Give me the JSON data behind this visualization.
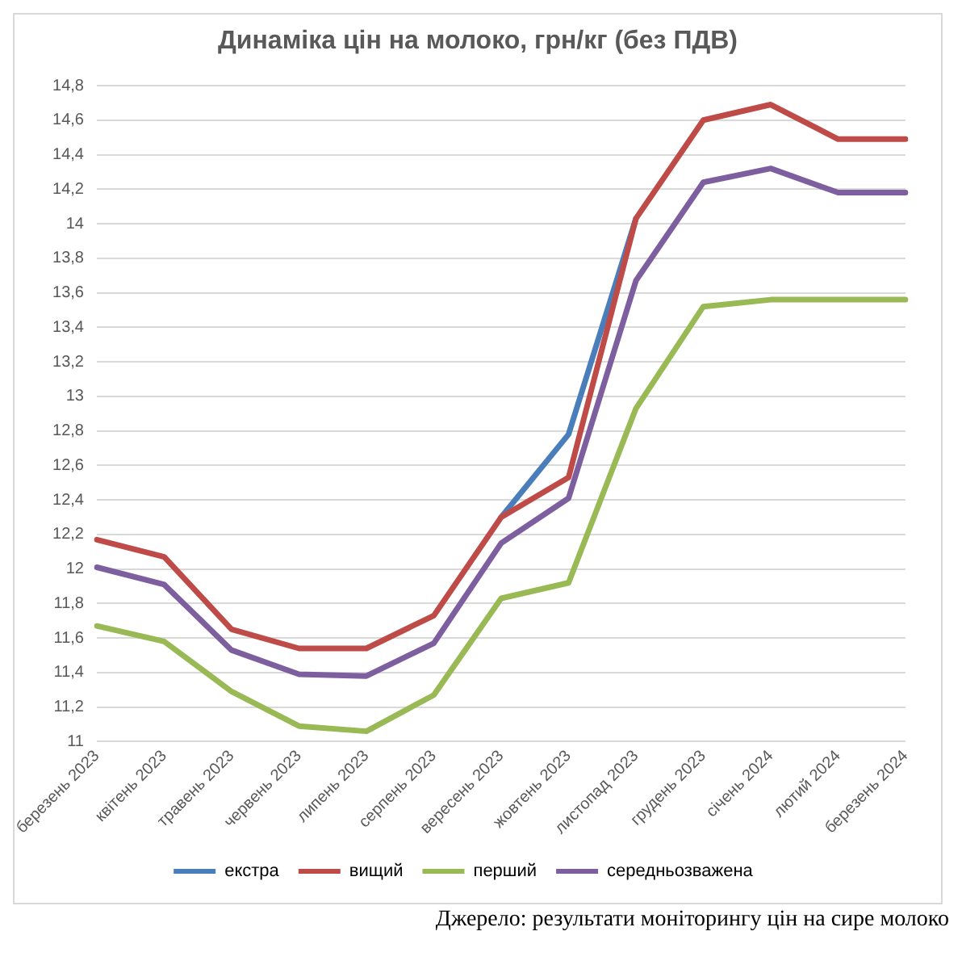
{
  "chart_data": {
    "type": "line",
    "title": "Динаміка цін на молоко, грн/кг (без ПДВ)",
    "categories": [
      "березень 2023",
      "квітень 2023",
      "травень 2023",
      "червень 2023",
      "липень 2023",
      "серпень 2023",
      "вересень 2023",
      "жовтень 2023",
      "листопад 2023",
      "грудень 2023",
      "січень 2024",
      "лютий 2024",
      "березень 2024"
    ],
    "series": [
      {
        "name": "екстра",
        "color": "#4a7ebb",
        "values": [
          null,
          null,
          null,
          null,
          null,
          null,
          12.3,
          12.78,
          14.03,
          null,
          null,
          null,
          null
        ]
      },
      {
        "name": "вищий",
        "color": "#be4b48",
        "values": [
          12.17,
          12.07,
          11.65,
          11.54,
          11.54,
          11.73,
          12.3,
          12.53,
          14.03,
          14.6,
          14.69,
          14.49,
          14.49
        ]
      },
      {
        "name": "перший",
        "color": "#98b954",
        "values": [
          11.67,
          11.58,
          11.29,
          11.09,
          11.06,
          11.27,
          11.83,
          11.92,
          12.93,
          13.52,
          13.56,
          13.56,
          13.56
        ]
      },
      {
        "name": "середньозважена",
        "color": "#7d5fa0",
        "values": [
          12.01,
          11.91,
          11.53,
          11.39,
          11.38,
          11.57,
          12.15,
          12.41,
          13.67,
          14.24,
          14.32,
          14.18,
          14.18
        ]
      }
    ],
    "ylim": [
      11,
      14.8
    ],
    "yticks": [
      {
        "value": 11,
        "label": "11"
      },
      {
        "value": 11.2,
        "label": "11,2"
      },
      {
        "value": 11.4,
        "label": "11,4"
      },
      {
        "value": 11.6,
        "label": "11,6"
      },
      {
        "value": 11.8,
        "label": "11,8"
      },
      {
        "value": 12,
        "label": "12"
      },
      {
        "value": 12.2,
        "label": "12,2"
      },
      {
        "value": 12.4,
        "label": "12,4"
      },
      {
        "value": 12.6,
        "label": "12,6"
      },
      {
        "value": 12.8,
        "label": "12,8"
      },
      {
        "value": 13,
        "label": "13"
      },
      {
        "value": 13.2,
        "label": "13,2"
      },
      {
        "value": 13.4,
        "label": "13,4"
      },
      {
        "value": 13.6,
        "label": "13,6"
      },
      {
        "value": 13.8,
        "label": "13,8"
      },
      {
        "value": 14,
        "label": "14"
      },
      {
        "value": 14.2,
        "label": "14,2"
      },
      {
        "value": 14.4,
        "label": "14,4"
      },
      {
        "value": 14.6,
        "label": "14,6"
      },
      {
        "value": 14.8,
        "label": "14,8"
      }
    ],
    "grid": "y",
    "legend": "bottom",
    "marker": "none",
    "line_style": "solid",
    "annotations": [
      "Джерело: результати моніторингу цін на сире молоко"
    ]
  }
}
